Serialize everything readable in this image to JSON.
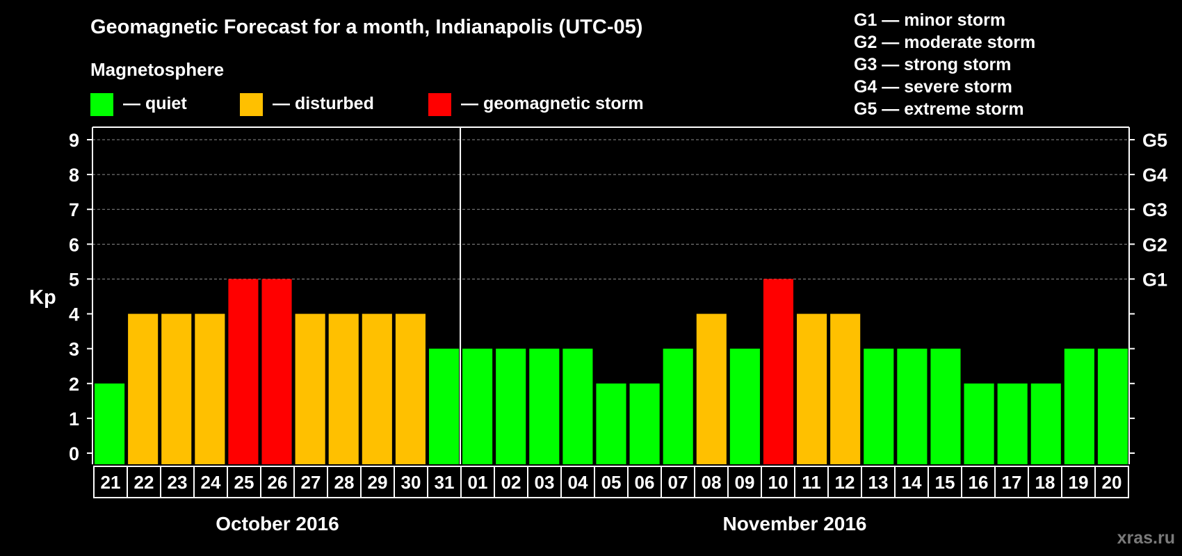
{
  "title": "Geomagnetic Forecast for a month, Indianapolis (UTC-05)",
  "legend": {
    "heading": "Magnetosphere",
    "items": [
      {
        "label": "— quiet",
        "color": "#00ff00"
      },
      {
        "label": "— disturbed",
        "color": "#ffc000"
      },
      {
        "label": "— geomagnetic storm",
        "color": "#ff0000"
      }
    ]
  },
  "storm_scale": [
    "G1 — minor storm",
    "G2 — moderate storm",
    "G3 — strong storm",
    "G4 — severe storm",
    "G5 — extreme storm"
  ],
  "watermark": "xras.ru",
  "chart_data": {
    "type": "bar",
    "ylabel": "Kp",
    "ylim": [
      0,
      9
    ],
    "yticks": [
      0,
      1,
      2,
      3,
      4,
      5,
      6,
      7,
      8,
      9
    ],
    "right_axis_labels": [
      {
        "kp": 5,
        "label": "G1"
      },
      {
        "kp": 6,
        "label": "G2"
      },
      {
        "kp": 7,
        "label": "G3"
      },
      {
        "kp": 8,
        "label": "G4"
      },
      {
        "kp": 9,
        "label": "G5"
      }
    ],
    "grid": true,
    "categories": [
      "21",
      "22",
      "23",
      "24",
      "25",
      "26",
      "27",
      "28",
      "29",
      "30",
      "31",
      "01",
      "02",
      "03",
      "04",
      "05",
      "06",
      "07",
      "08",
      "09",
      "10",
      "11",
      "12",
      "13",
      "14",
      "15",
      "16",
      "17",
      "18",
      "19",
      "20"
    ],
    "values": [
      2,
      4,
      4,
      4,
      5,
      5,
      4,
      4,
      4,
      4,
      3,
      3,
      3,
      3,
      3,
      2,
      2,
      3,
      4,
      3,
      5,
      4,
      4,
      3,
      3,
      3,
      2,
      2,
      2,
      3,
      3
    ],
    "levels": [
      "quiet",
      "disturbed",
      "disturbed",
      "disturbed",
      "storm",
      "storm",
      "disturbed",
      "disturbed",
      "disturbed",
      "disturbed",
      "quiet",
      "quiet",
      "quiet",
      "quiet",
      "quiet",
      "quiet",
      "quiet",
      "quiet",
      "disturbed",
      "quiet",
      "storm",
      "disturbed",
      "disturbed",
      "quiet",
      "quiet",
      "quiet",
      "quiet",
      "quiet",
      "quiet",
      "quiet",
      "quiet"
    ],
    "level_colors": {
      "quiet": "#00ff00",
      "disturbed": "#ffc000",
      "storm": "#ff0000"
    },
    "months": [
      {
        "label": "October 2016",
        "count": 11
      },
      {
        "label": "November 2016",
        "count": 20
      }
    ]
  }
}
